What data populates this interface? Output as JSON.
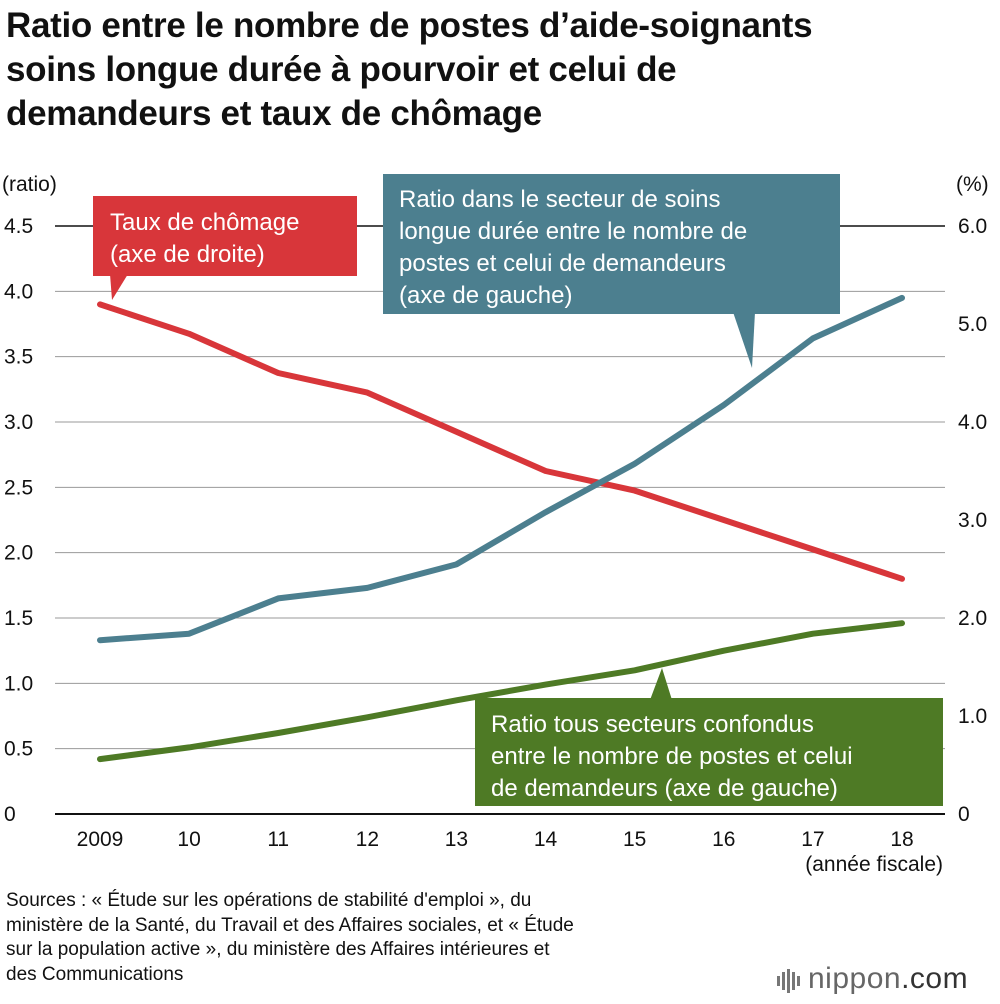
{
  "title_lines": [
    "Ratio entre le nombre de postes d’aide-soignants",
    "soins longue durée à pourvoir et celui de",
    "demandeurs et taux de chômage"
  ],
  "source_lines": [
    "Sources : « Étude sur les opérations de stabilité d'emploi », du",
    "ministère de la Santé, du Travail et des Affaires sociales, et « Étude",
    "sur la population active », du ministère des Affaires intérieures et",
    "des Communications"
  ],
  "logo": {
    "brand": "nippon",
    "suffix": ".com"
  },
  "chart_data": {
    "type": "line",
    "x": [
      "2009",
      "10",
      "11",
      "12",
      "13",
      "14",
      "15",
      "16",
      "17",
      "18"
    ],
    "x_unit_label": "(année fiscale)",
    "left_axis": {
      "label": "(ratio)",
      "range": [
        0,
        4.5
      ],
      "ticks": [
        0,
        0.5,
        1.0,
        1.5,
        2.0,
        2.5,
        3.0,
        3.5,
        4.0,
        4.5
      ],
      "tick_labels": [
        "0",
        "0.5",
        "1.0",
        "1.5",
        "2.0",
        "2.5",
        "3.0",
        "3.5",
        "4.0",
        "4.5"
      ]
    },
    "right_axis": {
      "label": "(%)",
      "range": [
        0,
        6.0
      ],
      "ticks": [
        0,
        1.0,
        2.0,
        3.0,
        4.0,
        5.0,
        6.0
      ],
      "tick_labels": [
        "0",
        "1.0",
        "2.0",
        "3.0",
        "4.0",
        "5.0",
        "6.0"
      ]
    },
    "grid": true,
    "series": [
      {
        "name": "Taux de chômage (axe de droite)",
        "axis": "right",
        "color": "#d8363a",
        "values": [
          5.2,
          4.9,
          4.5,
          4.3,
          3.9,
          3.5,
          3.3,
          3.0,
          2.7,
          2.4
        ],
        "label_lines": [
          "Taux de chômage",
          "(axe de droite)"
        ]
      },
      {
        "name": "Ratio dans le secteur de soins longue durée entre le nombre de postes et celui de demandeurs (axe de gauche)",
        "axis": "left",
        "color": "#4c7f8f",
        "values": [
          1.33,
          1.38,
          1.65,
          1.73,
          1.91,
          2.31,
          2.68,
          3.13,
          3.64,
          3.95
        ],
        "label_lines": [
          "Ratio dans le secteur de soins",
          "longue durée entre le nombre de",
          "postes et celui de demandeurs",
          "(axe de gauche)"
        ]
      },
      {
        "name": "Ratio tous secteurs confondus entre le nombre de postes et celui de demandeurs (axe de gauche)",
        "axis": "left",
        "color": "#4e7a25",
        "values": [
          0.42,
          0.51,
          0.62,
          0.74,
          0.87,
          0.99,
          1.1,
          1.25,
          1.38,
          1.46
        ],
        "label_lines": [
          "Ratio tous secteurs confondus",
          "entre le nombre de postes et celui",
          "de demandeurs (axe de gauche)"
        ]
      }
    ]
  }
}
